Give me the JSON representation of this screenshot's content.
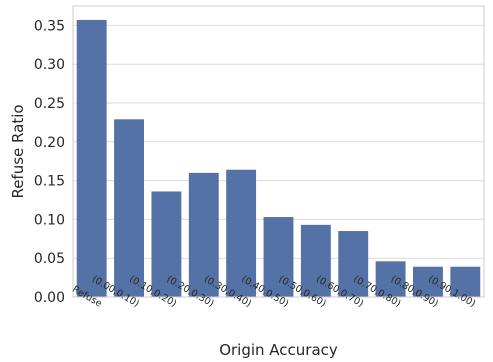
{
  "chart_data": {
    "type": "bar",
    "xlabel": "Origin Accuracy",
    "ylabel": "Refuse Ratio",
    "categories": [
      "Refuse",
      "(0.00,0.10)",
      "(0.10,0.20)",
      "(0.20,0.30)",
      "(0.30,0.40)",
      "(0.40,0.50)",
      "(0.50,0.60)",
      "(0.60,0.70)",
      "(0.70,0.80)",
      "(0.80,0.90)",
      "(0.90,1.00)"
    ],
    "values": [
      0.357,
      0.229,
      0.136,
      0.16,
      0.164,
      0.103,
      0.093,
      0.085,
      0.046,
      0.039,
      0.039
    ],
    "ylim": [
      0,
      0.375
    ],
    "yticks": [
      0.0,
      0.05,
      0.1,
      0.15,
      0.2,
      0.25,
      0.3,
      0.35
    ],
    "ytick_labels": [
      "0.00",
      "0.05",
      "0.10",
      "0.15",
      "0.20",
      "0.25",
      "0.30",
      "0.35"
    ],
    "grid": "y",
    "bar_color": "#5572a6"
  }
}
